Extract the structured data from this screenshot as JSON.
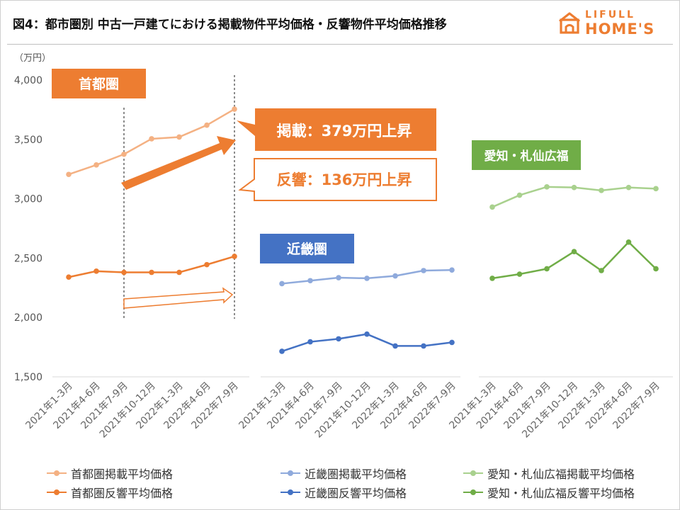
{
  "title": "図4：都市圏別 中古一戸建てにおける掲載物件平均価格・反響物件平均価格推移",
  "logo": {
    "line1": "LIFULL",
    "line2": "HOME'S",
    "color": "#ED7D31"
  },
  "chart_data": {
    "type": "line",
    "unit_label": "（万円）",
    "ylim": [
      1500,
      4000
    ],
    "yticks": [
      "1,500",
      "2,000",
      "2,500",
      "3,000",
      "3,500",
      "4,000"
    ],
    "grid": false,
    "categories": [
      "2021年1-3月",
      "2021年4-6月",
      "2021年7-9月",
      "2021年10-12月",
      "2022年1-3月",
      "2022年4-6月",
      "2022年7-9月"
    ],
    "panels": [
      {
        "region": "首都圏",
        "label_color": "#ED7D31",
        "series": [
          {
            "name": "首都圏掲載平均価格",
            "color": "#F4B183",
            "values": [
              3205,
              3285,
              3375,
              3505,
              3520,
              3620,
              3755
            ]
          },
          {
            "name": "首都圏反響平均価格",
            "color": "#ED7D31",
            "values": [
              2340,
              2390,
              2380,
              2380,
              2380,
              2445,
              2515
            ]
          }
        ]
      },
      {
        "region": "近畿圏",
        "label_color": "#4472C4",
        "series": [
          {
            "name": "近畿圏掲載平均価格",
            "color": "#8FAADC",
            "values": [
              2285,
              2310,
              2335,
              2330,
              2350,
              2395,
              2400
            ]
          },
          {
            "name": "近畿圏反響平均価格",
            "color": "#4472C4",
            "values": [
              1715,
              1795,
              1820,
              1860,
              1760,
              1760,
              1790
            ]
          }
        ]
      },
      {
        "region": "愛知・札仙広福",
        "label_color": "#70AD47",
        "series": [
          {
            "name": "愛知・札仙広福掲載平均価格",
            "color": "#A9D18E",
            "values": [
              2930,
              3030,
              3100,
              3095,
              3070,
              3095,
              3085
            ]
          },
          {
            "name": "愛知・札仙広福反響平均価格",
            "color": "#70AD47",
            "values": [
              2330,
              2365,
              2410,
              2555,
              2395,
              2635,
              2410
            ]
          }
        ]
      }
    ],
    "annotations": {
      "listing_increase": "掲載：379万円上昇",
      "response_increase": "反響：136万円上昇"
    }
  }
}
